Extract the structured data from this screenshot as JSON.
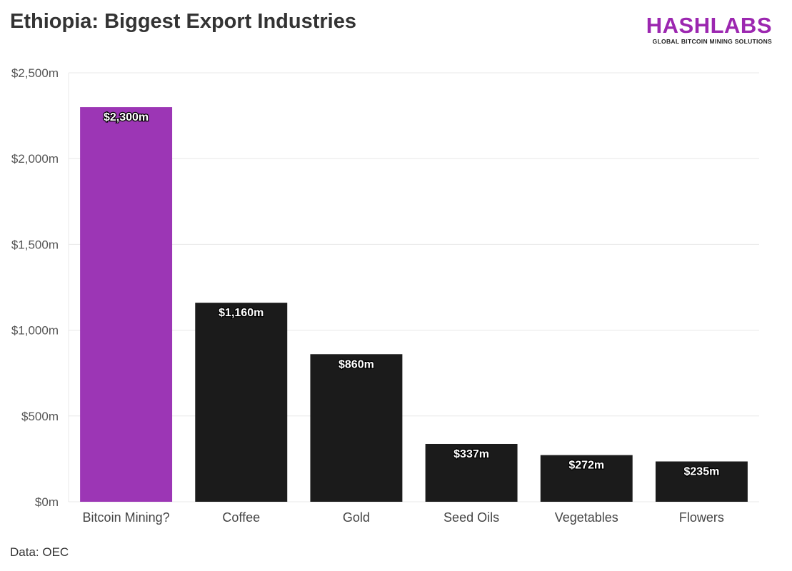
{
  "header": {
    "title": "Ethiopia: Biggest Export Industries"
  },
  "logo": {
    "name": "HASHLABS",
    "tagline": "GLOBAL BITCOIN MINING SOLUTIONS"
  },
  "footer": {
    "source": "Data: OEC"
  },
  "colors": {
    "highlight": "#9c36b5",
    "default": "#1b1b1b",
    "grid": "#e8e8e8",
    "brand": "#9c27b0"
  },
  "chart_data": {
    "type": "bar",
    "title": "Ethiopia: Biggest Export Industries",
    "xlabel": "",
    "ylabel": "",
    "categories": [
      "Bitcoin Mining?",
      "Coffee",
      "Gold",
      "Seed Oils",
      "Vegetables",
      "Flowers"
    ],
    "values": [
      2300,
      1160,
      860,
      337,
      272,
      235
    ],
    "data_labels": [
      "$2,300m",
      "$1,160m",
      "$860m",
      "$337m",
      "$272m",
      "$235m"
    ],
    "highlight_index": 0,
    "ylim": [
      0,
      2500
    ],
    "yticks": [
      0,
      500,
      1000,
      1500,
      2000,
      2500
    ],
    "ytick_labels": [
      "$0m",
      "$500m",
      "$1,000m",
      "$1,500m",
      "$2,000m",
      "$2,500m"
    ],
    "grid": true,
    "legend": "none"
  }
}
